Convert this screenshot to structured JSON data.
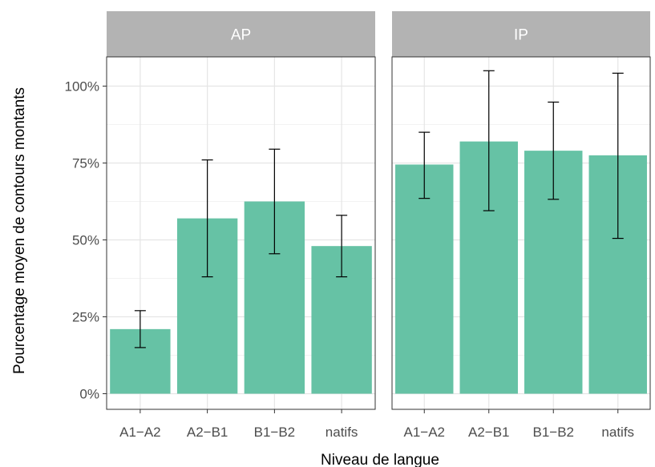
{
  "chart_data": {
    "type": "bar",
    "xlabel": "Niveau de langue",
    "ylabel": "Pourcentage moyen de contours montants",
    "categories": [
      "A1−A2",
      "A2−B1",
      "B1−B2",
      "natifs"
    ],
    "ylim": [
      0,
      1.2
    ],
    "yticks": [
      0,
      0.25,
      0.5,
      0.75,
      1.0
    ],
    "ytick_labels": [
      "0%",
      "25%",
      "50%",
      "75%",
      "100%"
    ],
    "grid": true,
    "bar_color": "#66c2a5",
    "facets": [
      {
        "label": "AP",
        "values": [
          0.21,
          0.57,
          0.625,
          0.48
        ],
        "error_low": [
          0.15,
          0.38,
          0.455,
          0.38
        ],
        "error_high": [
          0.27,
          0.76,
          0.795,
          0.58
        ]
      },
      {
        "label": "IP",
        "values": [
          0.745,
          0.82,
          0.79,
          0.775
        ],
        "error_low": [
          0.635,
          0.595,
          0.632,
          0.505
        ],
        "error_high": [
          0.85,
          1.05,
          0.948,
          1.042
        ]
      }
    ]
  }
}
